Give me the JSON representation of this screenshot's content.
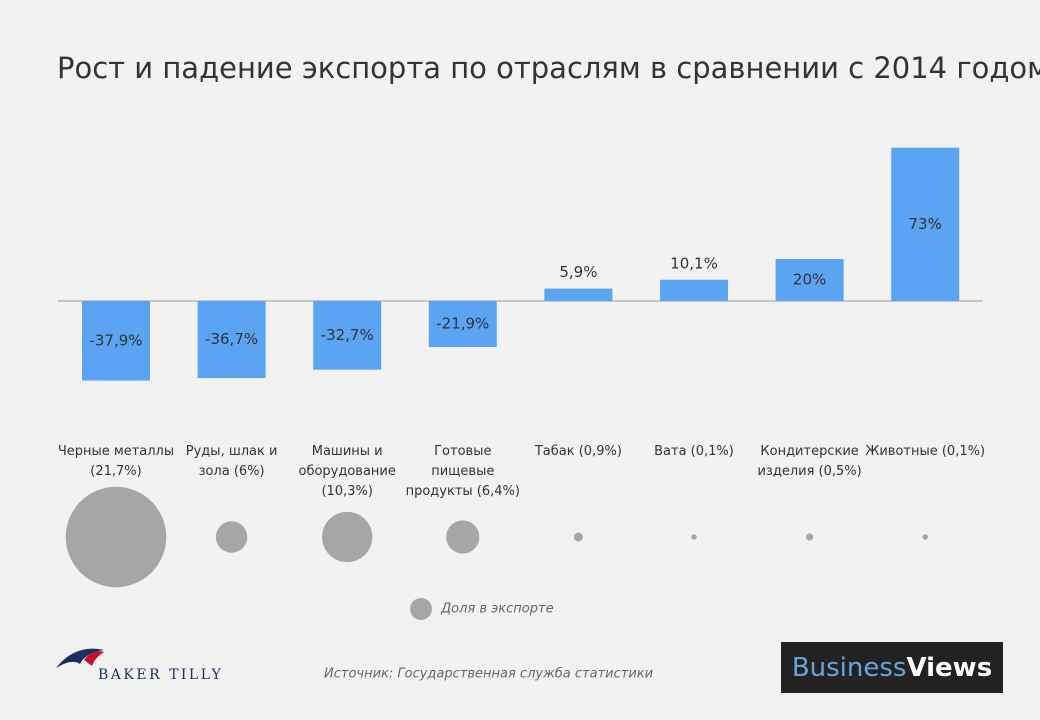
{
  "chart_data": {
    "type": "bar",
    "title": "Рост и падение экспорта по отраслям в сравнении с 2014 годом",
    "categories": [
      "Черные металлы (21,7%)",
      "Руды, шлак и зола (6%)",
      "Машины и оборудование (10,3%)",
      "Готовые пищевые продукты (6,4%)",
      "Табак (0,9%)",
      "Вата (0,1%)",
      "Кондитерские изделия (0,5%)",
      "Животные (0,1%)"
    ],
    "values": [
      -37.9,
      -36.7,
      -32.7,
      -21.9,
      5.9,
      10.1,
      20,
      73
    ],
    "value_labels": [
      "-37,9%",
      "-36,7%",
      "-32,7%",
      "-21,9%",
      "5,9%",
      "10,1%",
      "20%",
      "73%"
    ],
    "color": "#5ba4f4",
    "bubbles": {
      "name": "Доля в экспорте",
      "color": "#a6a6a6",
      "values": [
        21.7,
        6,
        10.3,
        6.4,
        0.9,
        0.1,
        0.5,
        0.1
      ]
    }
  },
  "source": "Источник: Государственная служба статистики",
  "branding": {
    "logo": "BAKER TILLY",
    "badge_first": "Business",
    "badge_second": "Views"
  }
}
